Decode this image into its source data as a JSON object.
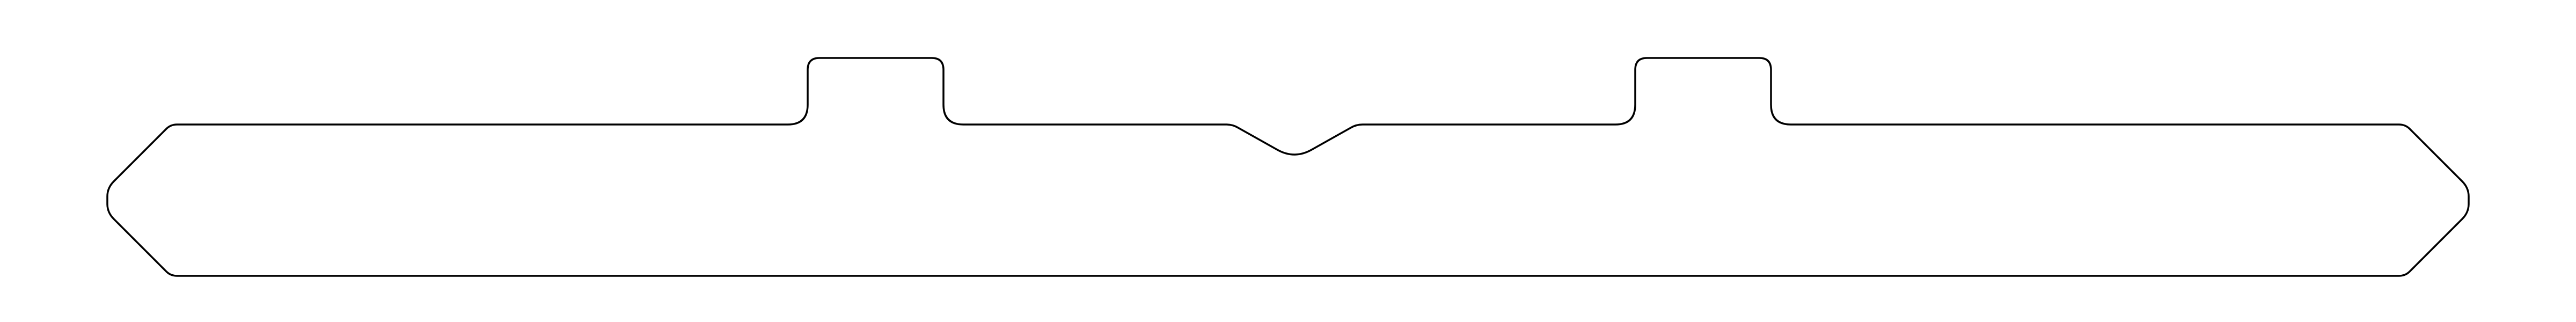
{
  "figure": {
    "background_color": "#ffffff",
    "stroke_color": "#000000",
    "fill_color": "none"
  }
}
